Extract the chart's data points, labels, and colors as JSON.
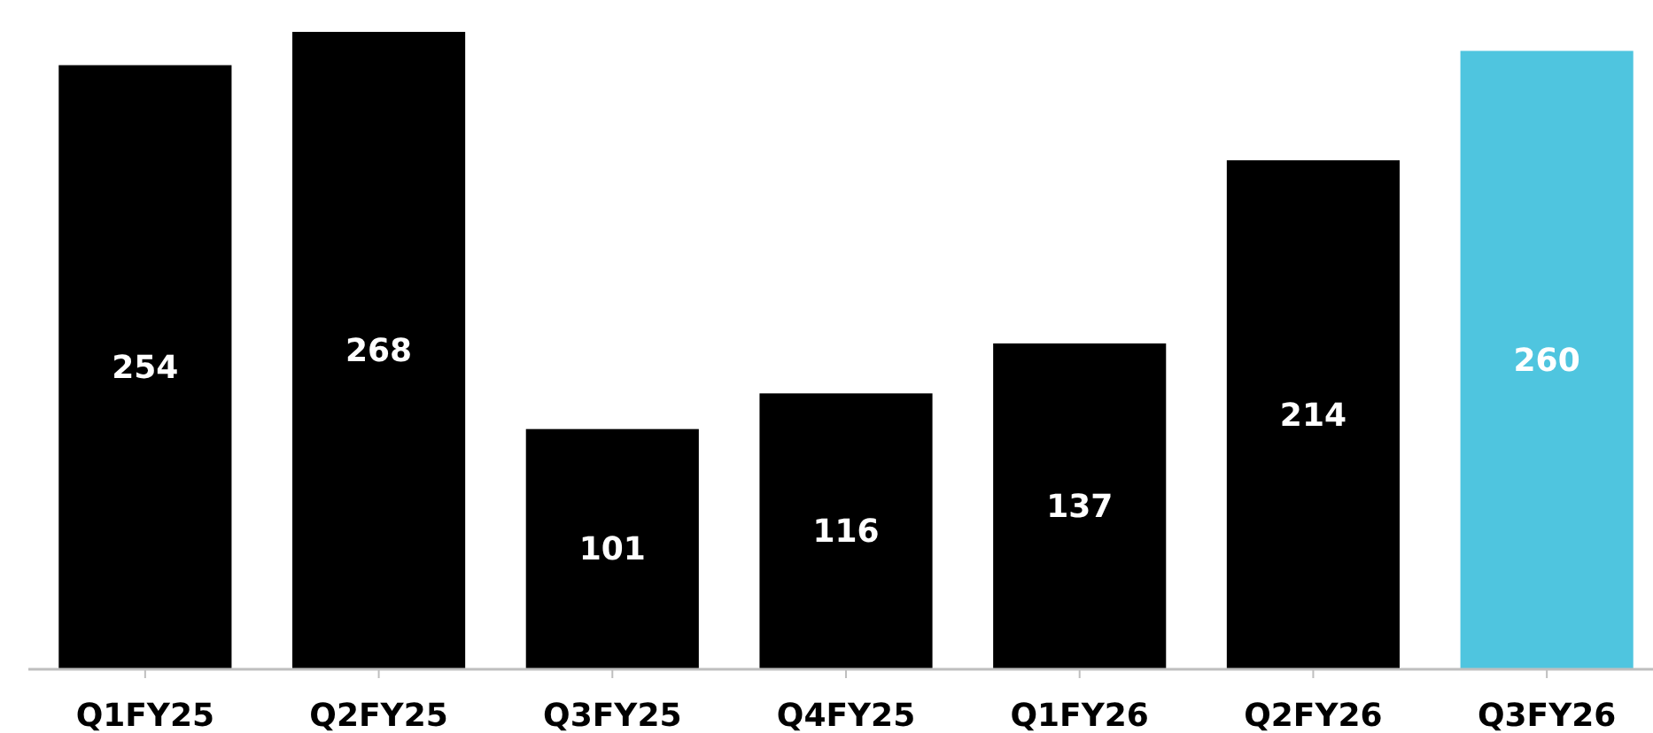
{
  "chart_data": {
    "type": "bar",
    "categories": [
      "Q1FY25",
      "Q2FY25",
      "Q3FY25",
      "Q4FY25",
      "Q1FY26",
      "Q2FY26",
      "Q3FY26"
    ],
    "values": [
      254,
      268,
      101,
      116,
      137,
      214,
      260
    ],
    "colors": [
      "#000000",
      "#000000",
      "#000000",
      "#000000",
      "#000000",
      "#000000",
      "#4fc5df"
    ],
    "data_labels": true
  }
}
